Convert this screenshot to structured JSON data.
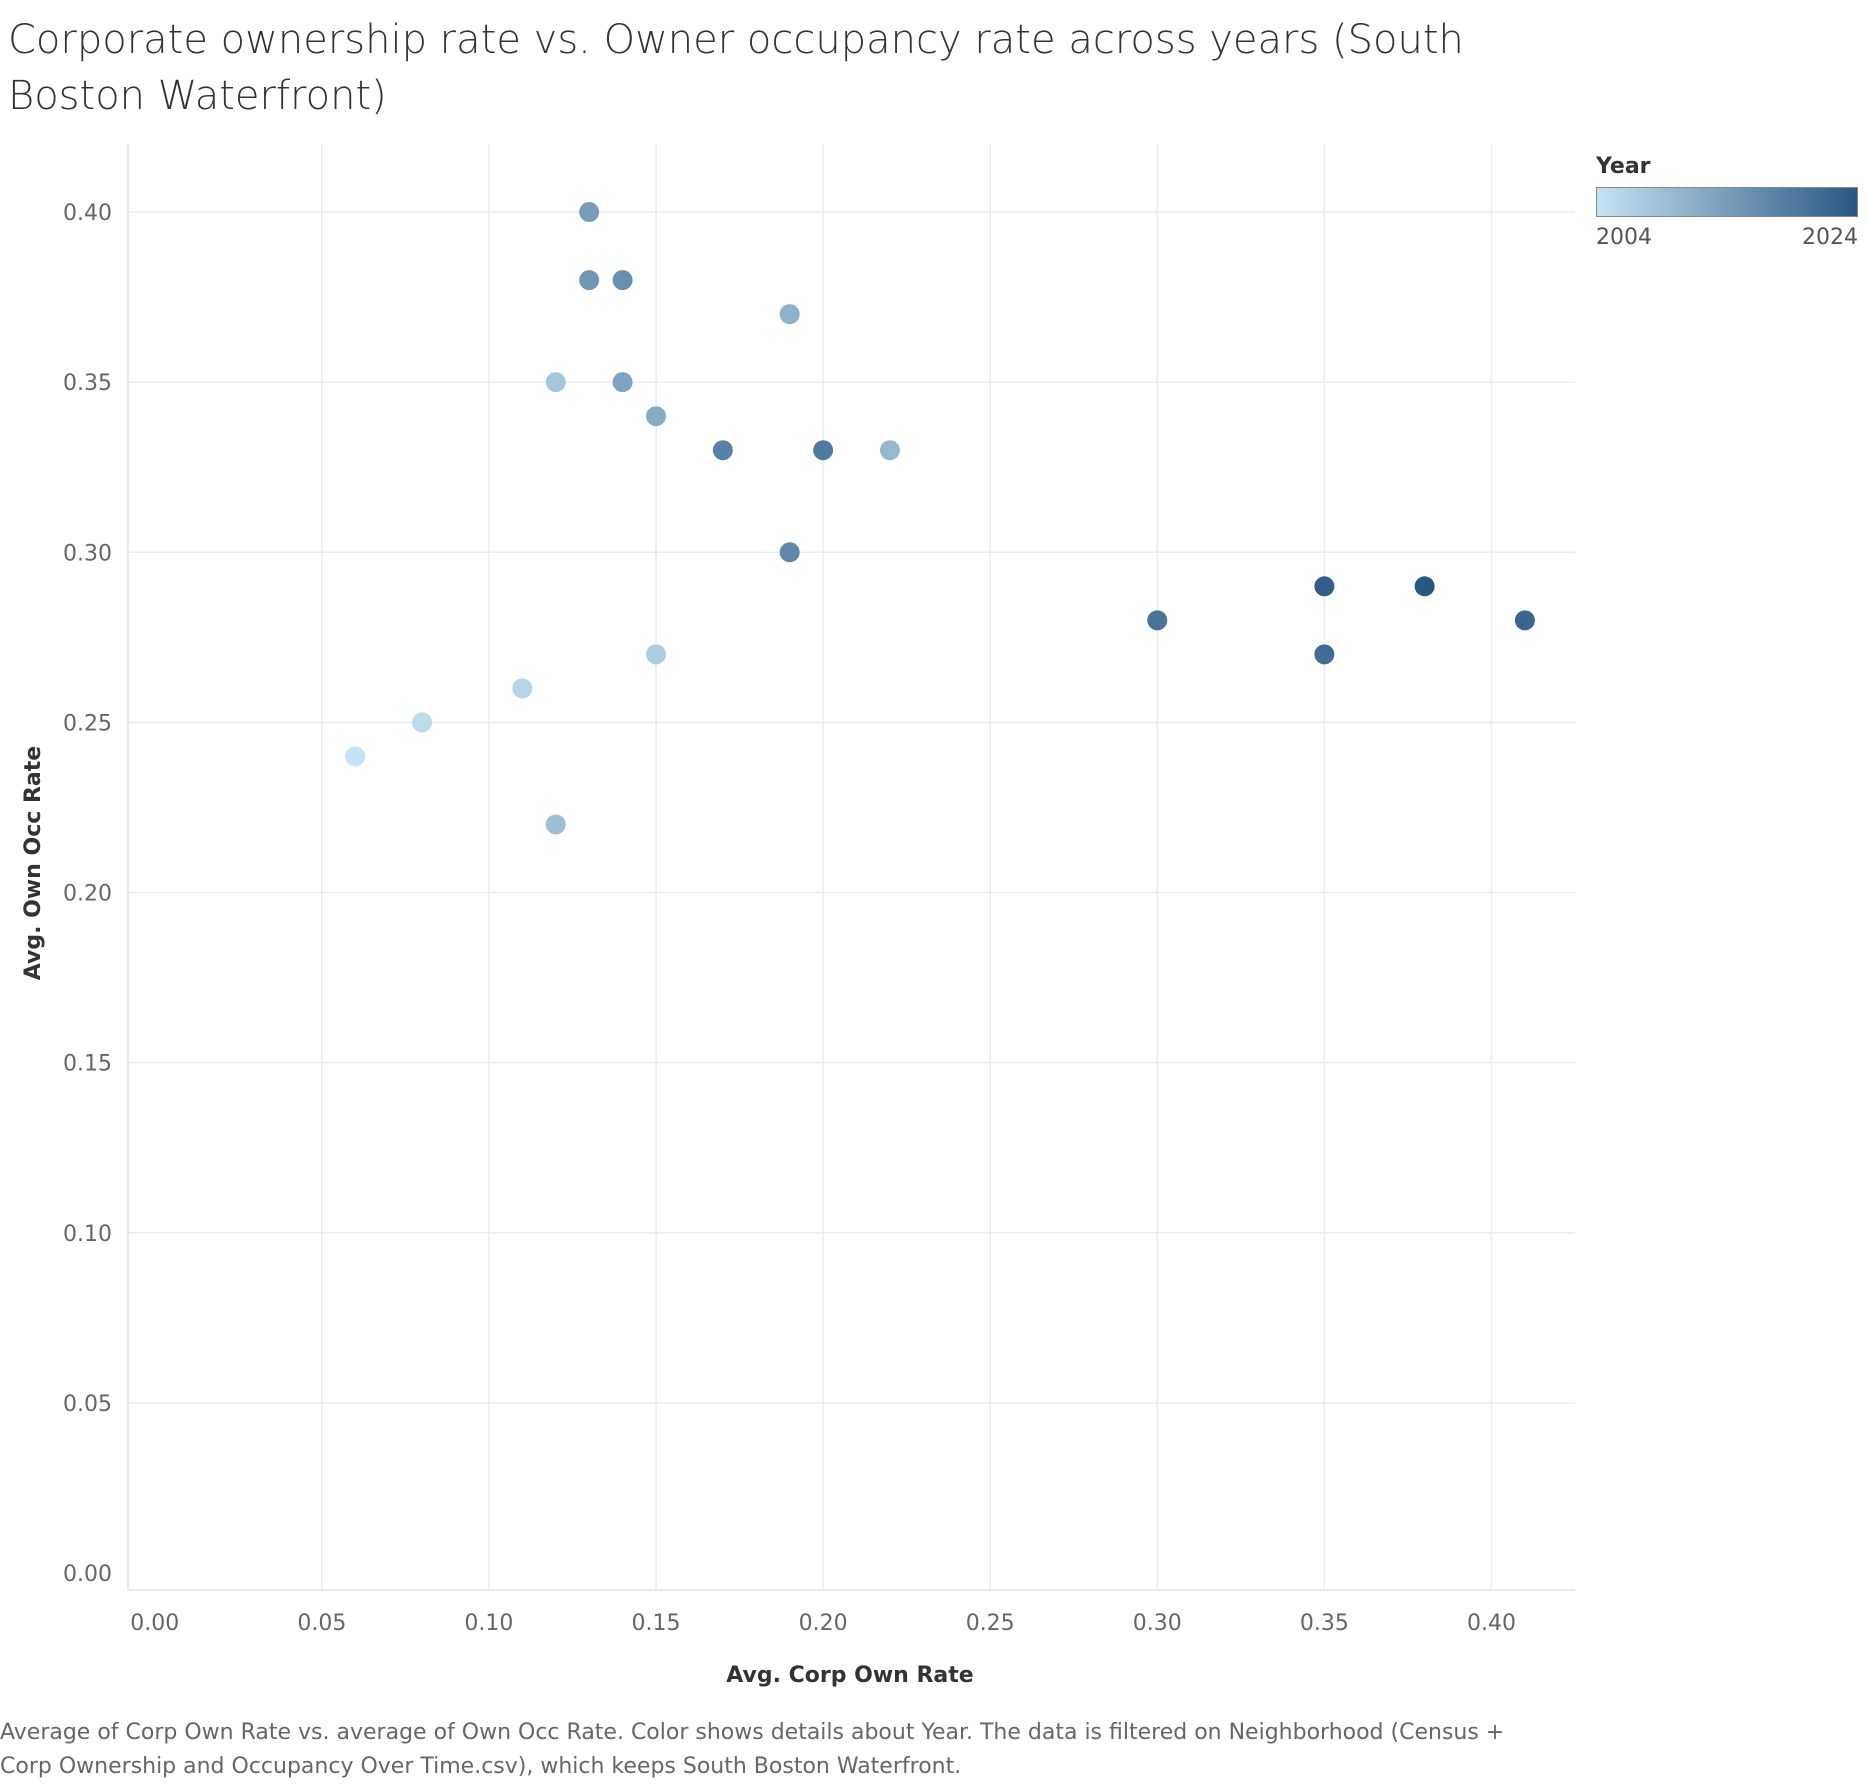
{
  "chart_data": {
    "type": "scatter",
    "title": "Corporate ownership rate vs. Owner occupancy rate across years (South Boston Waterfront)",
    "xlabel": "Avg. Corp Own Rate",
    "ylabel": "Avg. Own Occ Rate",
    "xlim": [
      -0.008,
      0.425
    ],
    "ylim": [
      -0.005,
      0.42
    ],
    "xticks": [
      "0.00",
      "0.05",
      "0.10",
      "0.15",
      "0.20",
      "0.25",
      "0.30",
      "0.35",
      "0.40"
    ],
    "yticks": [
      "0.00",
      "0.05",
      "0.10",
      "0.15",
      "0.20",
      "0.25",
      "0.30",
      "0.35",
      "0.40"
    ],
    "grid": true,
    "color_legend": {
      "title": "Year",
      "min_label": "2004",
      "max_label": "2024",
      "min_color": "#c3e3f3",
      "max_color": "#2a5783",
      "position": "top-right"
    },
    "points": [
      {
        "x": 0.06,
        "y": 0.24,
        "year": 2004
      },
      {
        "x": 0.08,
        "y": 0.25,
        "year": 2005
      },
      {
        "x": 0.11,
        "y": 0.26,
        "year": 2006
      },
      {
        "x": 0.15,
        "y": 0.27,
        "year": 2007
      },
      {
        "x": 0.12,
        "y": 0.35,
        "year": 2008
      },
      {
        "x": 0.12,
        "y": 0.22,
        "year": 2009
      },
      {
        "x": 0.22,
        "y": 0.33,
        "year": 2010
      },
      {
        "x": 0.19,
        "y": 0.37,
        "year": 2011
      },
      {
        "x": 0.15,
        "y": 0.34,
        "year": 2012
      },
      {
        "x": 0.14,
        "y": 0.35,
        "year": 2013
      },
      {
        "x": 0.13,
        "y": 0.4,
        "year": 2014
      },
      {
        "x": 0.13,
        "y": 0.38,
        "year": 2015
      },
      {
        "x": 0.14,
        "y": 0.38,
        "year": 2016
      },
      {
        "x": 0.19,
        "y": 0.3,
        "year": 2017
      },
      {
        "x": 0.17,
        "y": 0.33,
        "year": 2018
      },
      {
        "x": 0.2,
        "y": 0.33,
        "year": 2019
      },
      {
        "x": 0.3,
        "y": 0.28,
        "year": 2020
      },
      {
        "x": 0.35,
        "y": 0.27,
        "year": 2021
      },
      {
        "x": 0.41,
        "y": 0.28,
        "year": 2022
      },
      {
        "x": 0.35,
        "y": 0.29,
        "year": 2023
      },
      {
        "x": 0.38,
        "y": 0.29,
        "year": 2024
      }
    ]
  },
  "caption": "Average of Corp Own Rate vs. average of Own Occ Rate.  Color shows details about Year. The data is filtered on Neighborhood (Census + Corp Ownership and Occupancy Over Time.csv), which keeps South Boston Waterfront."
}
